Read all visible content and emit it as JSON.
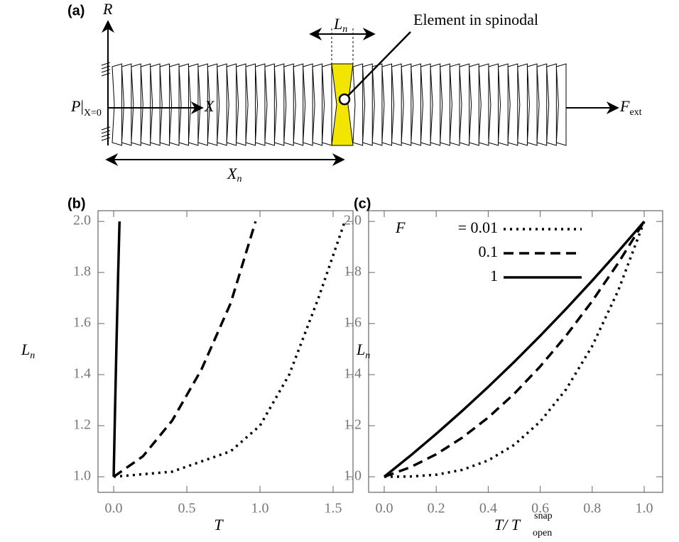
{
  "diagram": {
    "panel_label": "(a)",
    "r_axis": "R",
    "segment_length": [
      "L",
      "n"
    ],
    "callout": "Element in spinodal",
    "boundary": [
      "P",
      "X=0"
    ],
    "x_axis": "X",
    "force": [
      "F",
      "ext"
    ],
    "position": [
      "X",
      "n"
    ]
  },
  "chart_data": [
    {
      "type": "line",
      "panel_label": "(b)",
      "x_label": "T",
      "y_label": [
        "L",
        "n"
      ],
      "xlim": [
        -0.107,
        1.636
      ],
      "ylim": [
        0.939,
        2.042
      ],
      "xticks": [
        {
          "value": 0,
          "label": "0.0"
        },
        0.5,
        {
          "value": 1,
          "label": "1.0"
        },
        1.5
      ],
      "yticks": [
        {
          "value": 1,
          "label": "1.0"
        },
        1.2,
        1.4,
        1.6,
        1.8,
        {
          "value": 2,
          "label": "2.0"
        }
      ],
      "series": [
        {
          "style": "solid",
          "color": "#000000",
          "x": [
            0,
            0.01,
            0.02,
            0.03,
            0.04
          ],
          "values": [
            1,
            1.28,
            1.54,
            1.78,
            2.0
          ]
        },
        {
          "style": "dashed",
          "color": "#000000",
          "x": [
            0,
            0.2,
            0.4,
            0.6,
            0.8,
            0.97
          ],
          "values": [
            1,
            1.08,
            1.22,
            1.42,
            1.68,
            2.0
          ]
        },
        {
          "style": "dotted",
          "color": "#000000",
          "x": [
            0,
            0.4,
            0.8,
            1.0,
            1.2,
            1.4,
            1.58
          ],
          "values": [
            1,
            1.02,
            1.1,
            1.2,
            1.4,
            1.7,
            2.0
          ]
        }
      ]
    },
    {
      "type": "line",
      "panel_label": "(c)",
      "x_label": [
        "T/ T",
        "snap",
        "open"
      ],
      "y_label": [
        "L",
        "n"
      ],
      "xlim": [
        -0.06,
        1.071
      ],
      "ylim": [
        0.939,
        2.042
      ],
      "legend": "top-left",
      "legend_title": "F",
      "xticks": [
        {
          "value": 0,
          "label": "0.0"
        },
        0.2,
        0.4,
        0.6,
        0.8,
        {
          "value": 1,
          "label": "1.0"
        }
      ],
      "yticks": [
        {
          "value": 1,
          "label": "1.0"
        },
        1.2,
        1.4,
        1.6,
        1.8,
        {
          "value": 2,
          "label": "2.0"
        }
      ],
      "series": [
        {
          "name": "= 0.01",
          "style": "dotted",
          "color": "#000000",
          "x": [
            0,
            0.1,
            0.2,
            0.3,
            0.4,
            0.5,
            0.6,
            0.7,
            0.8,
            0.9,
            1
          ],
          "values": [
            1,
            1.001,
            1.008,
            1.027,
            1.064,
            1.125,
            1.216,
            1.343,
            1.512,
            1.729,
            2.0
          ]
        },
        {
          "name": "0.1",
          "style": "dashed",
          "color": "#000000",
          "x": [
            0,
            0.1,
            0.2,
            0.3,
            0.4,
            0.5,
            0.6,
            0.7,
            0.8,
            0.9,
            1
          ],
          "values": [
            1,
            1.037,
            1.088,
            1.153,
            1.232,
            1.325,
            1.432,
            1.553,
            1.688,
            1.837,
            2.0
          ]
        },
        {
          "name": "1",
          "style": "solid",
          "color": "#000000",
          "x": [
            0,
            0.1,
            0.2,
            0.3,
            0.4,
            0.5,
            0.6,
            0.7,
            0.8,
            0.9,
            1
          ],
          "values": [
            1,
            1.082,
            1.168,
            1.258,
            1.352,
            1.45,
            1.552,
            1.658,
            1.768,
            1.882,
            2.0
          ]
        }
      ]
    }
  ]
}
